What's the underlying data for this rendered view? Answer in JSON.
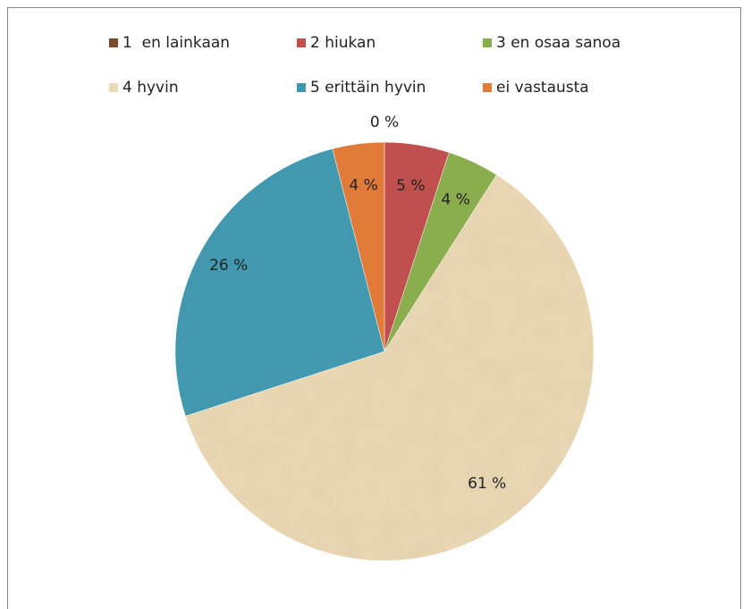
{
  "chart_data": {
    "type": "pie",
    "categories": [
      "1  en lainkaan",
      "2 hiukan",
      "3 en osaa sanoa",
      "4 hyvin",
      "5 erittäin hyvin",
      "ei vastausta"
    ],
    "values": [
      0,
      5,
      4,
      61,
      26,
      4
    ],
    "value_labels": [
      "0 %",
      "5 %",
      "4 %",
      "61 %",
      "26 %",
      "4 %"
    ],
    "colors": [
      "#7a4a2a",
      "#c0504d",
      "#8aad4e",
      "#ecdab6",
      "#4198af",
      "#e07b39"
    ]
  }
}
